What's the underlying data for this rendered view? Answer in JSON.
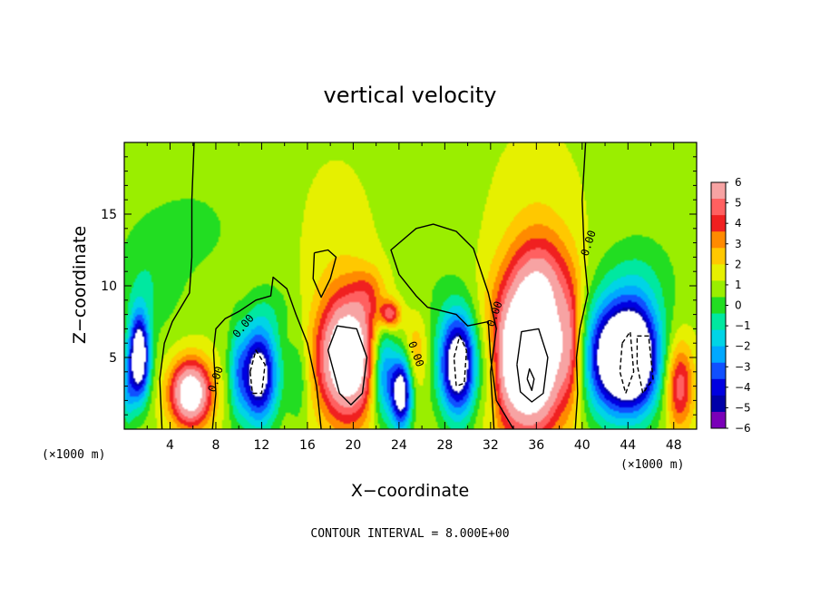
{
  "chart_data": {
    "type": "heatmap",
    "title": "vertical velocity",
    "xlabel": "X−coordinate",
    "ylabel": "Z−coordinate",
    "x_unit_left": "(×1000 m)",
    "x_unit_right": "(×1000 m)",
    "xlim": [
      0,
      50
    ],
    "ylim": [
      0,
      20
    ],
    "xticks": [
      "4",
      "8",
      "12",
      "16",
      "20",
      "24",
      "28",
      "32",
      "36",
      "40",
      "44",
      "48"
    ],
    "xtick_values": [
      4,
      8,
      12,
      16,
      20,
      24,
      28,
      32,
      36,
      40,
      44,
      48
    ],
    "yticks": [
      "5",
      "10",
      "15"
    ],
    "ytick_values": [
      5,
      10,
      15
    ],
    "footer": "CONTOUR INTERVAL = 8.000E+00",
    "contour_labels": [
      "0.00",
      "0.00",
      "0.00",
      "0.00",
      "0.00",
      "0.00"
    ],
    "colorbar": {
      "labels": [
        "6",
        "5",
        "4",
        "3",
        "2",
        "1",
        "0",
        "−1",
        "−2",
        "−3",
        "−4",
        "−5",
        "−6"
      ],
      "values": [
        6,
        5,
        4,
        3,
        2,
        1,
        0,
        -1,
        -2,
        -3,
        -4,
        -5,
        -6
      ],
      "colors": [
        "#f7a3a3",
        "#ff6060",
        "#f02020",
        "#ff8a00",
        "#ffc800",
        "#e6f000",
        "#9aee00",
        "#22dd22",
        "#00e8a0",
        "#00d4e6",
        "#00a8ff",
        "#1050ff",
        "#0000e0",
        "#0000a8",
        "#7a00b8"
      ]
    },
    "cells": [
      {
        "x": 1.3,
        "z": 5.0,
        "rx": 0.9,
        "rz": 3.0,
        "w": -10
      },
      {
        "x": 0.3,
        "z": 2.5,
        "rx": 0.6,
        "rz": 2.5,
        "w": -3
      },
      {
        "x": 5.8,
        "z": 2.5,
        "rx": 1.8,
        "rz": 2.3,
        "w": 9
      },
      {
        "x": 9.8,
        "z": 4.0,
        "rx": 0.7,
        "rz": 3.5,
        "w": -2
      },
      {
        "x": 11.7,
        "z": 3.8,
        "rx": 1.7,
        "rz": 3.4,
        "w": -9
      },
      {
        "x": 13.0,
        "z": 8.5,
        "rx": 2.0,
        "rz": 2.0,
        "w": -1
      },
      {
        "x": 15.2,
        "z": 3.5,
        "rx": 0.9,
        "rz": 3.0,
        "w": -2
      },
      {
        "x": 18.5,
        "z": 13.0,
        "rx": 3.0,
        "rz": 5.5,
        "w": 0.6
      },
      {
        "x": 19.5,
        "z": 5.0,
        "rx": 2.6,
        "rz": 4.3,
        "w": 10
      },
      {
        "x": 21.5,
        "z": 9.5,
        "rx": 1.5,
        "rz": 1.8,
        "w": 2
      },
      {
        "x": 23.2,
        "z": 8.0,
        "rx": 0.9,
        "rz": 1.0,
        "w": 5
      },
      {
        "x": 22.6,
        "z": 4.0,
        "rx": 1.1,
        "rz": 3.5,
        "w": -6
      },
      {
        "x": 24.2,
        "z": 2.5,
        "rx": 0.9,
        "rz": 2.5,
        "w": -9
      },
      {
        "x": 25.5,
        "z": 5.5,
        "rx": 1.0,
        "rz": 2.5,
        "w": 2
      },
      {
        "x": 29.2,
        "z": 4.5,
        "rx": 1.7,
        "rz": 3.6,
        "w": -10
      },
      {
        "x": 27.0,
        "z": 10.0,
        "rx": 3.0,
        "rz": 3.5,
        "w": -0.6
      },
      {
        "x": 32.0,
        "z": 4.0,
        "rx": 0.9,
        "rz": 3.5,
        "w": -2
      },
      {
        "x": 35.3,
        "z": 5.0,
        "rx": 3.2,
        "rz": 5.2,
        "w": 12
      },
      {
        "x": 36.5,
        "z": 10.5,
        "rx": 2.8,
        "rz": 3.5,
        "w": 3.5
      },
      {
        "x": 36.0,
        "z": 15.5,
        "rx": 3.5,
        "rz": 5.0,
        "w": 0.7
      },
      {
        "x": 39.0,
        "z": 6.0,
        "rx": 1.0,
        "rz": 4.0,
        "w": 3
      },
      {
        "x": 42.0,
        "z": 5.0,
        "rx": 2.2,
        "rz": 4.0,
        "w": -7
      },
      {
        "x": 44.6,
        "z": 5.0,
        "rx": 2.2,
        "rz": 3.8,
        "w": -11
      },
      {
        "x": 45.0,
        "z": 10.5,
        "rx": 3.5,
        "rz": 3.5,
        "w": -1.5
      },
      {
        "x": 48.5,
        "z": 3.0,
        "rx": 1.2,
        "rz": 3.0,
        "w": 5
      },
      {
        "x": 6.0,
        "z": 14.0,
        "rx": 5.0,
        "rz": 4.0,
        "w": -1
      },
      {
        "x": 2.0,
        "z": 10.0,
        "rx": 3.0,
        "rz": 4.0,
        "w": -1.5
      }
    ],
    "contours": [
      {
        "style": "solid",
        "points": [
          [
            6.1,
            20
          ],
          [
            5.9,
            16
          ],
          [
            5.9,
            12
          ],
          [
            5.7,
            9.5
          ],
          [
            4.2,
            7.5
          ],
          [
            3.5,
            6
          ],
          [
            3.1,
            3.5
          ],
          [
            3.3,
            0
          ]
        ]
      },
      {
        "style": "solid",
        "points": [
          [
            40.3,
            20
          ],
          [
            40.0,
            16
          ],
          [
            40.2,
            12
          ],
          [
            40.5,
            9.5
          ],
          [
            39.8,
            7
          ],
          [
            39.5,
            5
          ],
          [
            39.6,
            2.5
          ],
          [
            39.4,
            0
          ]
        ]
      },
      {
        "style": "solid",
        "points": [
          [
            17.2,
            0
          ],
          [
            16.8,
            3
          ],
          [
            16.0,
            6
          ],
          [
            15.0,
            8
          ],
          [
            14.2,
            9.8
          ],
          [
            13.0,
            10.6
          ],
          [
            12.8,
            9.3
          ],
          [
            11.5,
            9.0
          ],
          [
            10.0,
            8.2
          ],
          [
            8.8,
            7.7
          ],
          [
            8.0,
            7.0
          ],
          [
            7.8,
            5.5
          ],
          [
            8.0,
            2.5
          ],
          [
            7.7,
            0
          ]
        ]
      },
      {
        "style": "solid",
        "points": [
          [
            34.0,
            0
          ],
          [
            32.5,
            2
          ],
          [
            32.0,
            5
          ],
          [
            31.8,
            7.5
          ],
          [
            30.0,
            7.2
          ],
          [
            29.0,
            8.0
          ],
          [
            26.5,
            8.5
          ],
          [
            25.5,
            9.3
          ],
          [
            24.0,
            10.8
          ],
          [
            23.3,
            12.5
          ],
          [
            25.5,
            14.0
          ],
          [
            27.0,
            14.3
          ],
          [
            29.0,
            13.8
          ],
          [
            30.5,
            12.6
          ],
          [
            31.8,
            9.5
          ],
          [
            32.5,
            7.0
          ],
          [
            32.0,
            4.0
          ],
          [
            32.3,
            0
          ]
        ]
      },
      {
        "style": "solid",
        "points": [
          [
            16.6,
            12.3
          ],
          [
            16.5,
            10.5
          ],
          [
            17.2,
            9.2
          ],
          [
            18.0,
            10.5
          ],
          [
            18.5,
            12.0
          ],
          [
            17.8,
            12.5
          ],
          [
            16.6,
            12.3
          ]
        ]
      },
      {
        "style": "solid",
        "points": [
          [
            17.8,
            5.5
          ],
          [
            18.6,
            7.2
          ],
          [
            20.3,
            7.0
          ],
          [
            21.2,
            5.0
          ],
          [
            20.8,
            2.5
          ],
          [
            19.8,
            1.7
          ],
          [
            18.8,
            2.5
          ],
          [
            17.8,
            5.5
          ]
        ]
      },
      {
        "style": "solid",
        "points": [
          [
            34.3,
            4.5
          ],
          [
            34.7,
            6.8
          ],
          [
            36.2,
            7.0
          ],
          [
            37.0,
            5.0
          ],
          [
            36.6,
            2.5
          ],
          [
            35.6,
            1.9
          ],
          [
            34.6,
            2.6
          ],
          [
            34.3,
            4.5
          ]
        ]
      },
      {
        "style": "solid",
        "points": [
          [
            35.2,
            3.5
          ],
          [
            35.4,
            4.2
          ],
          [
            35.8,
            3.5
          ],
          [
            35.6,
            2.7
          ],
          [
            35.2,
            3.5
          ]
        ]
      },
      {
        "style": "dashed",
        "points": [
          [
            11.0,
            4.0
          ],
          [
            11.5,
            5.5
          ],
          [
            12.3,
            4.5
          ],
          [
            12.0,
            2.5
          ],
          [
            11.2,
            2.5
          ],
          [
            11.0,
            4.0
          ]
        ]
      },
      {
        "style": "dashed",
        "points": [
          [
            28.8,
            5.0
          ],
          [
            29.3,
            6.5
          ],
          [
            29.9,
            5.5
          ],
          [
            29.7,
            3.2
          ],
          [
            29.0,
            3.0
          ],
          [
            28.8,
            5.0
          ]
        ]
      },
      {
        "style": "dashed",
        "points": [
          [
            43.5,
            6.0
          ],
          [
            44.2,
            6.8
          ],
          [
            44.5,
            4.0
          ],
          [
            43.8,
            2.5
          ],
          [
            43.3,
            4.0
          ],
          [
            43.5,
            6.0
          ]
        ]
      },
      {
        "style": "dashed",
        "points": [
          [
            44.8,
            6.5
          ],
          [
            45.8,
            6.5
          ],
          [
            46.2,
            3.5
          ],
          [
            45.3,
            2.5
          ],
          [
            44.8,
            4.5
          ],
          [
            44.8,
            6.5
          ]
        ]
      }
    ]
  }
}
